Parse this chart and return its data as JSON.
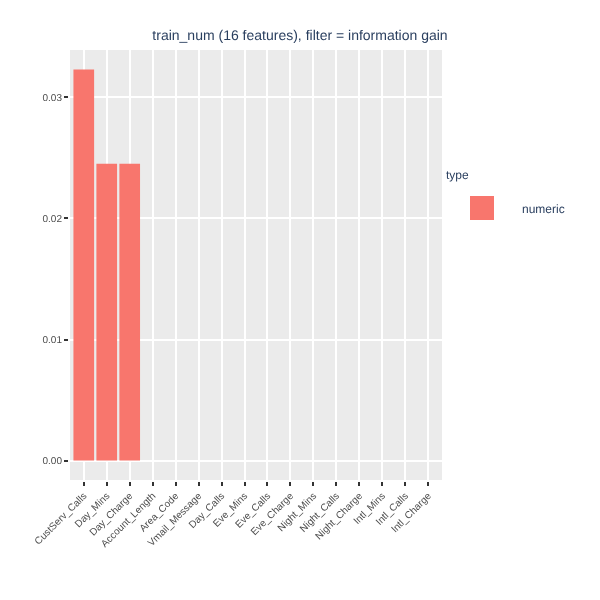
{
  "chart_data": {
    "type": "bar",
    "title": "train_num (16 features), filter = information gain",
    "categories": [
      "CustServ_Calls",
      "Day_Mins",
      "Day_Charge",
      "Account_Length",
      "Area_Code",
      "Vmail_Message",
      "Day_Calls",
      "Eve_Mins",
      "Eve_Calls",
      "Eve_Charge",
      "Night_Mins",
      "Night_Calls",
      "Night_Charge",
      "Intl_Mins",
      "Intl_Calls",
      "Intl_Charge"
    ],
    "series": [
      {
        "name": "numeric",
        "color": "#f8766d",
        "values": [
          0.0323,
          0.0245,
          0.0245,
          0,
          0,
          0,
          0,
          0,
          0,
          0,
          0,
          0,
          0,
          0,
          0,
          0
        ]
      }
    ],
    "legend_title": "type",
    "legend": "right",
    "ylim": [
      -0.0016,
      0.0339
    ],
    "yticks": [
      {
        "value": 0,
        "label": "0.00"
      },
      {
        "value": 0.01,
        "label": "0.01"
      },
      {
        "value": 0.02,
        "label": "0.02"
      },
      {
        "value": 0.03,
        "label": "0.03"
      }
    ],
    "grid": true
  }
}
